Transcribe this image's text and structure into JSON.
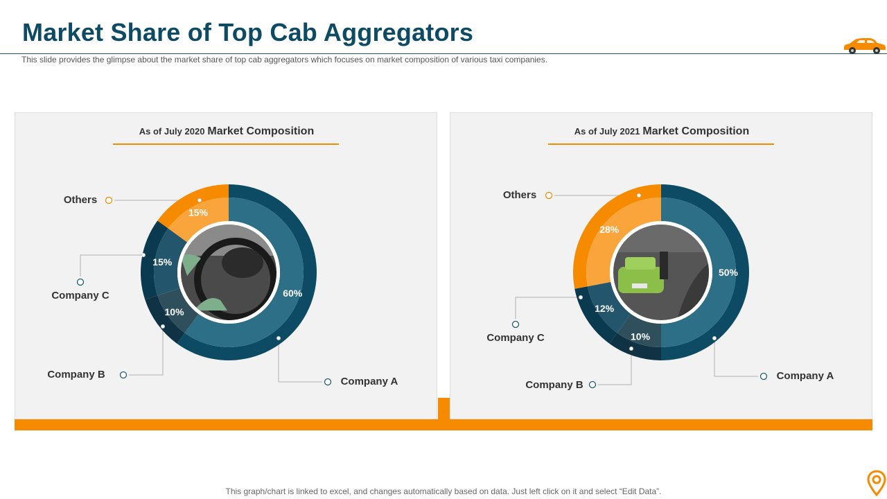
{
  "slide": {
    "title": "Market Share of Top Cab Aggregators",
    "subtitle": "This slide provides  the glimpse about the market share of top cab aggregators  which focuses on market composition of various  taxi companies.",
    "footer": "This graph/chart is linked to excel,  and changes automatically based on data. Just left click on it and select “Edit Data”."
  },
  "colors": {
    "title": "#0d4a63",
    "accent": "#f68b00",
    "company_a": "#0d4a63",
    "company_b": "#0f3344",
    "company_c": "#0a3a4f",
    "others": "#f68b00"
  },
  "chart_data": [
    {
      "type": "pie",
      "title_prefix": "As of July 2020",
      "title": "Market Composition",
      "slices": [
        {
          "label": "Company A",
          "value": 60,
          "value_label": "60%"
        },
        {
          "label": "Company B",
          "value": 10,
          "value_label": "10%"
        },
        {
          "label": "Company C",
          "value": 15,
          "value_label": "15%"
        },
        {
          "label": "Others",
          "value": 15,
          "value_label": "15%"
        }
      ]
    },
    {
      "type": "pie",
      "title_prefix": "As of July 2021",
      "title": "Market Composition",
      "slices": [
        {
          "label": "Company A",
          "value": 50,
          "value_label": "50%"
        },
        {
          "label": "Company B",
          "value": 10,
          "value_label": "10%"
        },
        {
          "label": "Company C",
          "value": 12,
          "value_label": "12%"
        },
        {
          "label": "Others",
          "value": 28,
          "value_label": "28%"
        }
      ]
    }
  ]
}
